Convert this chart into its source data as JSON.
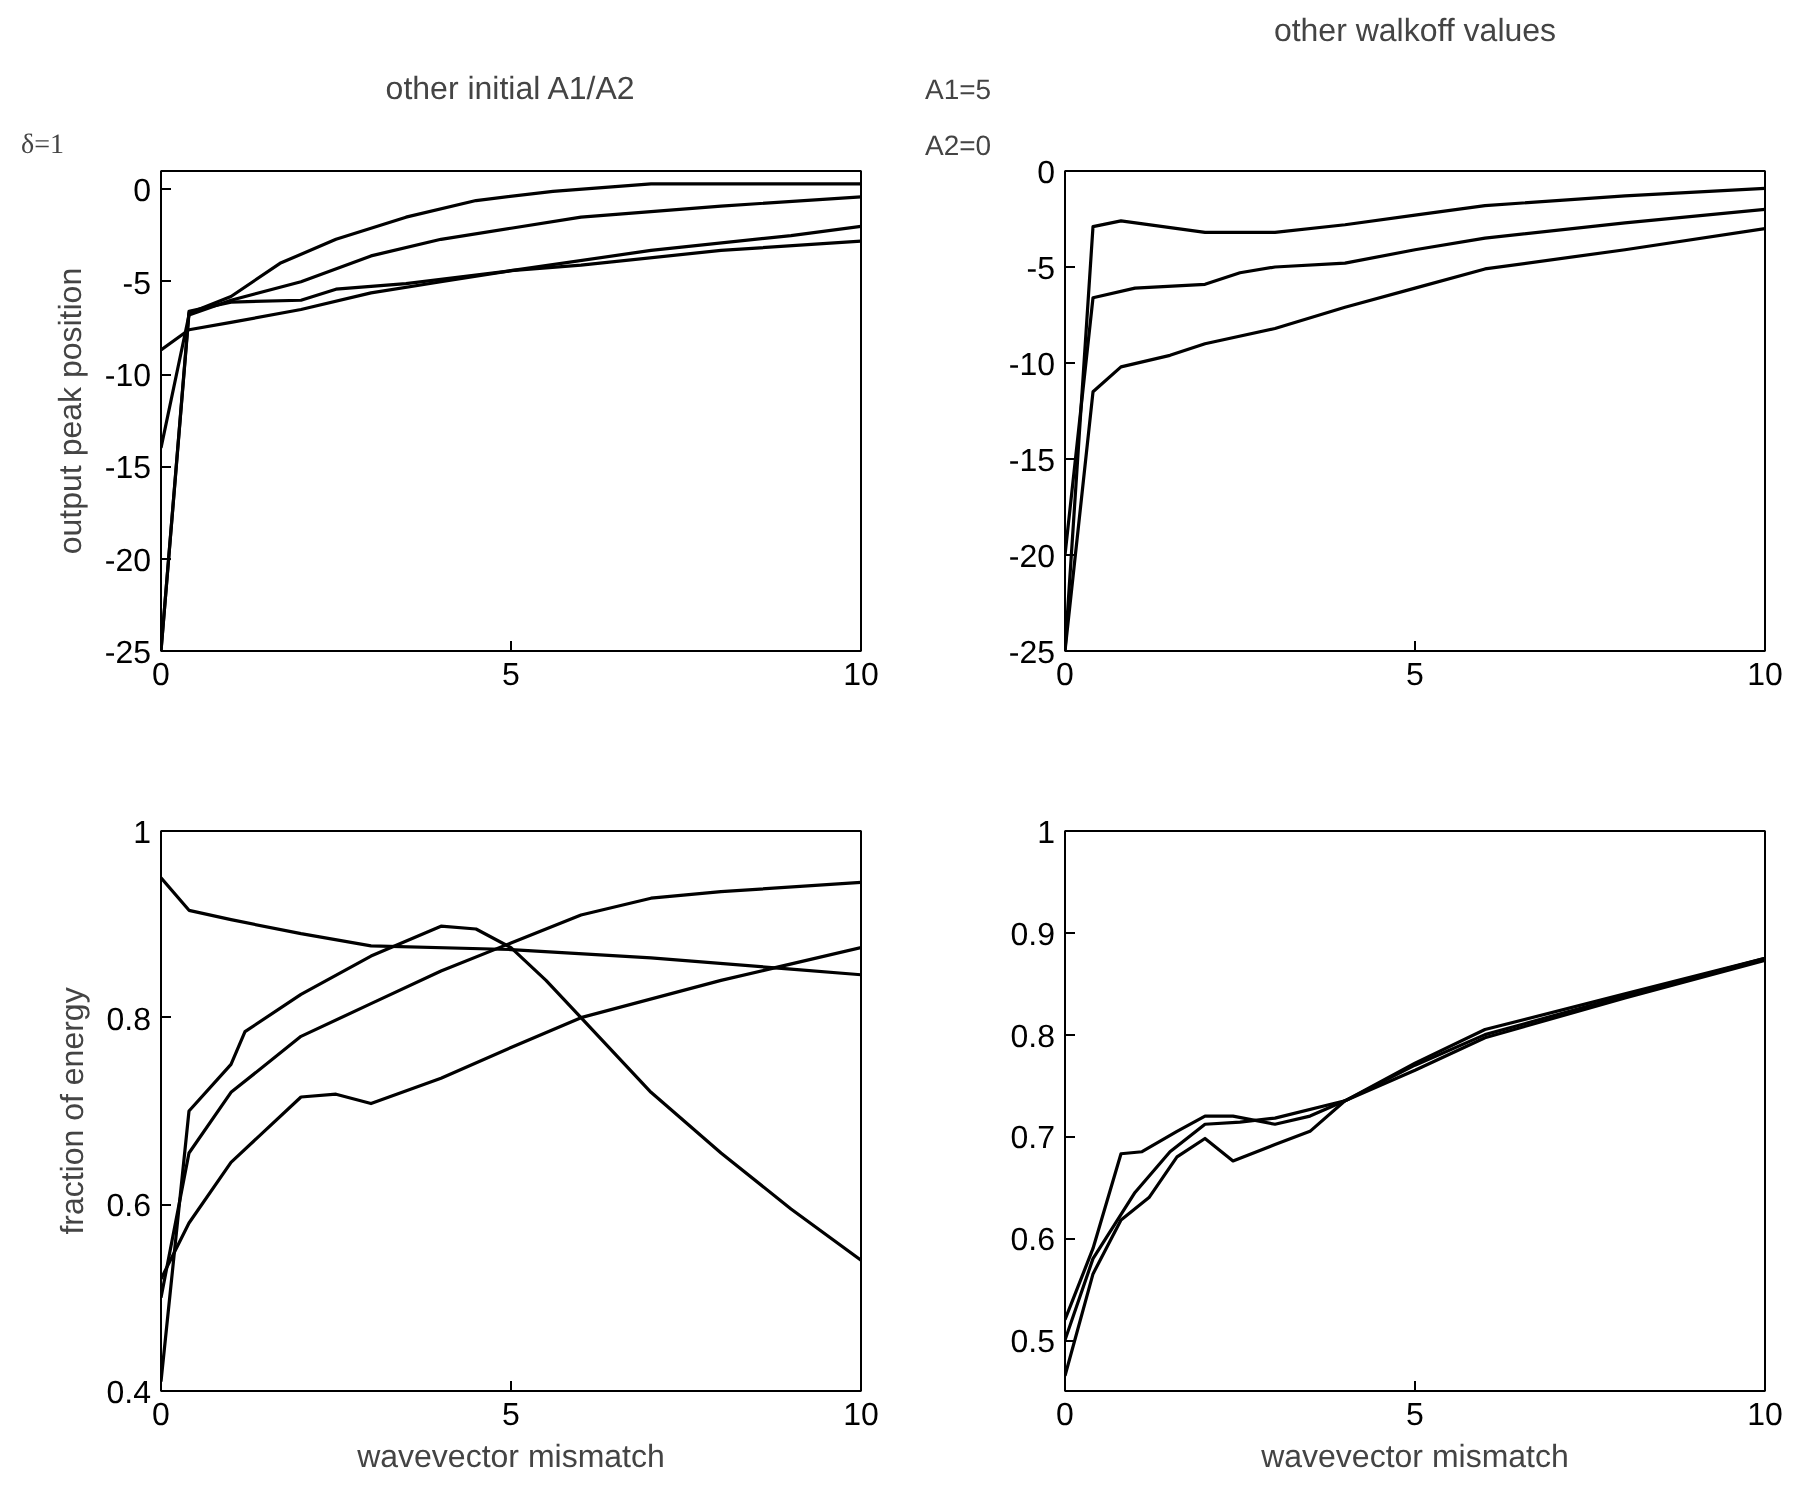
{
  "chart_data": [
    {
      "type": "line",
      "title": "other initial A1/A2",
      "ylabel": "output peak position",
      "annotations": [
        "δ=1"
      ],
      "xlim": [
        0,
        10
      ],
      "ylim": [
        -25,
        1
      ],
      "xticks": [
        0,
        5,
        10
      ],
      "yticks": [
        -25,
        -20,
        -15,
        -10,
        -5,
        0
      ],
      "grid": false,
      "series": [
        {
          "color": "#000000",
          "x": [
            0,
            0.4,
            1,
            1.7,
            2.5,
            3.5,
            4.5,
            5.6,
            7,
            10
          ],
          "values": [
            -25,
            -6.7,
            -5.8,
            -4.0,
            -2.7,
            -1.5,
            -0.6,
            -0.1,
            0.3,
            0.3
          ]
        },
        {
          "color": "#000000",
          "x": [
            0,
            0.4,
            1,
            2,
            3,
            4,
            5,
            6,
            8,
            10
          ],
          "values": [
            -14,
            -6.8,
            -6.0,
            -5.0,
            -3.6,
            -2.7,
            -2.1,
            -1.5,
            -0.9,
            -0.4
          ]
        },
        {
          "color": "#000000",
          "x": [
            0,
            0.4,
            1,
            2,
            2.5,
            3.5,
            5,
            7,
            9,
            10
          ],
          "values": [
            -25,
            -6.6,
            -6.1,
            -6.0,
            -5.4,
            -5.1,
            -4.4,
            -3.3,
            -2.5,
            -2.0
          ]
        },
        {
          "color": "#000000",
          "x": [
            0,
            0.4,
            1,
            2,
            3,
            4,
            5,
            6,
            8,
            10
          ],
          "values": [
            -8.7,
            -7.6,
            -7.2,
            -6.5,
            -5.6,
            -5.0,
            -4.4,
            -4.1,
            -3.3,
            -2.8
          ]
        }
      ]
    },
    {
      "type": "line",
      "title": "other walkoff values",
      "annotations": [
        "A1=5",
        "A2=0"
      ],
      "xlim": [
        0,
        10
      ],
      "ylim": [
        -25,
        0
      ],
      "xticks": [
        0,
        5,
        10
      ],
      "yticks": [
        -25,
        -20,
        -15,
        -10,
        -5,
        0
      ],
      "grid": false,
      "series": [
        {
          "color": "#000000",
          "x": [
            0,
            0.4,
            0.8,
            2,
            3,
            4,
            5,
            6,
            8,
            10
          ],
          "values": [
            -25,
            -2.9,
            -2.6,
            -3.2,
            -3.2,
            -2.8,
            -2.3,
            -1.8,
            -1.3,
            -0.9
          ]
        },
        {
          "color": "#000000",
          "x": [
            0,
            0.4,
            1,
            2,
            2.5,
            3,
            4,
            5,
            6,
            8,
            10
          ],
          "values": [
            -20,
            -6.6,
            -6.1,
            -5.9,
            -5.3,
            -5.0,
            -4.8,
            -4.1,
            -3.5,
            -2.7,
            -2.0
          ]
        },
        {
          "color": "#000000",
          "x": [
            0,
            0.4,
            0.8,
            1.5,
            2,
            3,
            4,
            5,
            6,
            8,
            10
          ],
          "values": [
            -25,
            -11.5,
            -10.2,
            -9.6,
            -9.0,
            -8.2,
            -7.1,
            -6.1,
            -5.1,
            -4.1,
            -3.0
          ]
        }
      ]
    },
    {
      "type": "line",
      "xlabel": "wavevector mismatch",
      "ylabel": "fraction of energy",
      "xlim": [
        0,
        10
      ],
      "ylim": [
        0.4,
        1
      ],
      "xticks": [
        0,
        5,
        10
      ],
      "yticks": [
        0.4,
        0.6,
        0.8,
        1
      ],
      "grid": false,
      "series": [
        {
          "color": "#000000",
          "x": [
            0,
            0.4,
            1,
            2,
            3,
            5,
            7,
            9,
            10
          ],
          "values": [
            0.95,
            0.915,
            0.905,
            0.89,
            0.877,
            0.873,
            0.864,
            0.852,
            0.846
          ]
        },
        {
          "color": "#000000",
          "x": [
            0,
            0.4,
            1,
            1.2,
            2,
            3,
            4,
            4.5,
            5,
            5.5,
            6,
            7,
            8,
            9,
            10
          ],
          "values": [
            0.41,
            0.7,
            0.75,
            0.785,
            0.825,
            0.866,
            0.898,
            0.895,
            0.875,
            0.84,
            0.8,
            0.72,
            0.655,
            0.595,
            0.54
          ]
        },
        {
          "color": "#000000",
          "x": [
            0,
            0.4,
            1,
            2,
            3,
            4,
            5,
            6,
            7,
            8,
            10
          ],
          "values": [
            0.5,
            0.655,
            0.72,
            0.78,
            0.815,
            0.85,
            0.88,
            0.91,
            0.928,
            0.935,
            0.945
          ]
        },
        {
          "color": "#000000",
          "x": [
            0,
            0.4,
            1,
            2,
            2.5,
            3,
            4,
            5,
            6,
            8,
            10
          ],
          "values": [
            0.52,
            0.58,
            0.645,
            0.715,
            0.718,
            0.708,
            0.735,
            0.768,
            0.8,
            0.84,
            0.875
          ]
        }
      ]
    },
    {
      "type": "line",
      "xlabel": "wavevector mismatch",
      "xlim": [
        0,
        10
      ],
      "ylim": [
        0.45,
        1
      ],
      "xticks": [
        0,
        5,
        10
      ],
      "yticks": [
        0.5,
        0.6,
        0.7,
        0.8,
        0.9,
        1
      ],
      "grid": false,
      "series": [
        {
          "color": "#000000",
          "x": [
            0,
            0.4,
            0.8,
            1.1,
            1.6,
            2,
            2.4,
            3,
            3.5,
            4,
            5,
            6,
            8,
            10
          ],
          "values": [
            0.52,
            0.59,
            0.683,
            0.685,
            0.705,
            0.72,
            0.72,
            0.712,
            0.72,
            0.735,
            0.772,
            0.805,
            0.84,
            0.875
          ]
        },
        {
          "color": "#000000",
          "x": [
            0,
            0.4,
            1,
            1.5,
            2,
            2.5,
            3,
            4,
            5,
            6,
            8,
            10
          ],
          "values": [
            0.5,
            0.58,
            0.645,
            0.685,
            0.712,
            0.714,
            0.718,
            0.735,
            0.77,
            0.8,
            0.838,
            0.875
          ]
        },
        {
          "color": "#000000",
          "x": [
            0,
            0.4,
            0.8,
            1.2,
            1.6,
            2,
            2.4,
            3,
            3.5,
            4,
            5,
            6,
            8,
            10
          ],
          "values": [
            0.465,
            0.565,
            0.618,
            0.64,
            0.68,
            0.698,
            0.676,
            0.692,
            0.705,
            0.735,
            0.765,
            0.797,
            0.836,
            0.873
          ]
        }
      ]
    }
  ]
}
